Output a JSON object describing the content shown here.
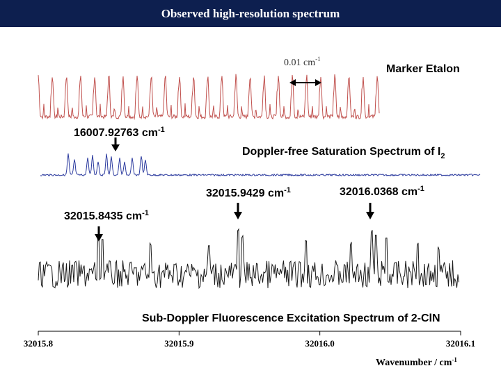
{
  "header": {
    "title": "Observed high-resolution spectrum"
  },
  "chart_data": {
    "type": "line",
    "title": "Observed high-resolution spectrum",
    "xlabel": "Wavenumber / cm",
    "xlabel_sup": "-1",
    "xlim": [
      32015.8,
      32016.1
    ],
    "x_ticks": [
      "32015.8",
      "32015.9",
      "32016.0",
      "32016.1"
    ],
    "grid": false,
    "series": [
      {
        "name": "Marker Etalon",
        "color": "#c0504d",
        "description_spacing": "0.01 cm",
        "spacing_sup": "-1"
      },
      {
        "name": "Doppler-free Saturation Spectrum of I",
        "name_sub": "2",
        "color": "#2b3a9e"
      },
      {
        "name": "Sub-Doppler Fluorescence Excitation Spectrum of 2-ClN",
        "color": "#1a1a1a"
      }
    ],
    "annotations": [
      {
        "value": "16007.92763 cm",
        "sup": "-1"
      },
      {
        "value": "32015.9429 cm",
        "sup": "-1"
      },
      {
        "value": "32016.0368 cm",
        "sup": "-1"
      },
      {
        "value": "32015.8435 cm",
        "sup": "-1"
      }
    ]
  }
}
